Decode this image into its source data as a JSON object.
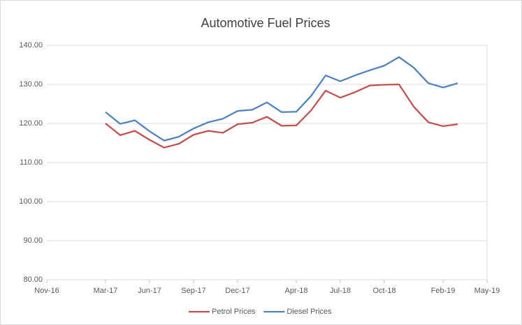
{
  "chart_data": {
    "type": "line",
    "title": "Automotive Fuel Prices",
    "x": [
      "2017-03",
      "2017-04",
      "2017-05",
      "2017-06",
      "2017-07",
      "2017-08",
      "2017-09",
      "2017-10",
      "2017-11",
      "2017-12",
      "2018-01",
      "2018-02",
      "2018-03",
      "2018-04",
      "2018-05",
      "2018-06",
      "2018-07",
      "2018-08",
      "2018-09",
      "2018-10",
      "2018-11",
      "2018-12",
      "2019-01",
      "2019-02",
      "2019-03"
    ],
    "series": [
      {
        "name": "Petrol Prices",
        "color": "#c0504d",
        "values": [
          120.0,
          117.0,
          118.1,
          115.8,
          113.8,
          114.8,
          117.1,
          118.1,
          117.6,
          119.8,
          120.2,
          121.7,
          119.4,
          119.5,
          123.3,
          128.4,
          126.6,
          128.0,
          129.7,
          129.9,
          130.0,
          124.3,
          120.3,
          119.3,
          119.8
        ]
      },
      {
        "name": "Diesel Prices",
        "color": "#4f81bd",
        "values": [
          122.9,
          119.9,
          120.8,
          118.0,
          115.6,
          116.6,
          118.7,
          120.3,
          121.2,
          123.2,
          123.5,
          125.4,
          122.9,
          123.0,
          127.0,
          132.3,
          130.8,
          132.3,
          133.6,
          134.8,
          137.0,
          134.3,
          130.3,
          129.2,
          130.3
        ]
      }
    ],
    "xlim": [
      "2016-11",
      "2019-05"
    ],
    "xticks": [
      {
        "value": "2016-11",
        "label": "Nov-16"
      },
      {
        "value": "2017-03",
        "label": "Mar-17"
      },
      {
        "value": "2017-06",
        "label": "Jun-17"
      },
      {
        "value": "2017-09",
        "label": "Sep-17"
      },
      {
        "value": "2017-12",
        "label": "Dec-17"
      },
      {
        "value": "2018-04",
        "label": "Apr-18"
      },
      {
        "value": "2018-07",
        "label": "Jul-18"
      },
      {
        "value": "2018-10",
        "label": "Oct-18"
      },
      {
        "value": "2019-02",
        "label": "Feb-19"
      },
      {
        "value": "2019-05",
        "label": "May-19"
      }
    ],
    "ylim": [
      80,
      140
    ],
    "yticks": [
      {
        "value": 80,
        "label": "80.00"
      },
      {
        "value": 90,
        "label": "90.00"
      },
      {
        "value": 100,
        "label": "100.00"
      },
      {
        "value": 110,
        "label": "110.00"
      },
      {
        "value": 120,
        "label": "120.00"
      },
      {
        "value": 130,
        "label": "130.00"
      },
      {
        "value": 140,
        "label": "140.00"
      }
    ],
    "grid": true,
    "legend": "bottom"
  }
}
